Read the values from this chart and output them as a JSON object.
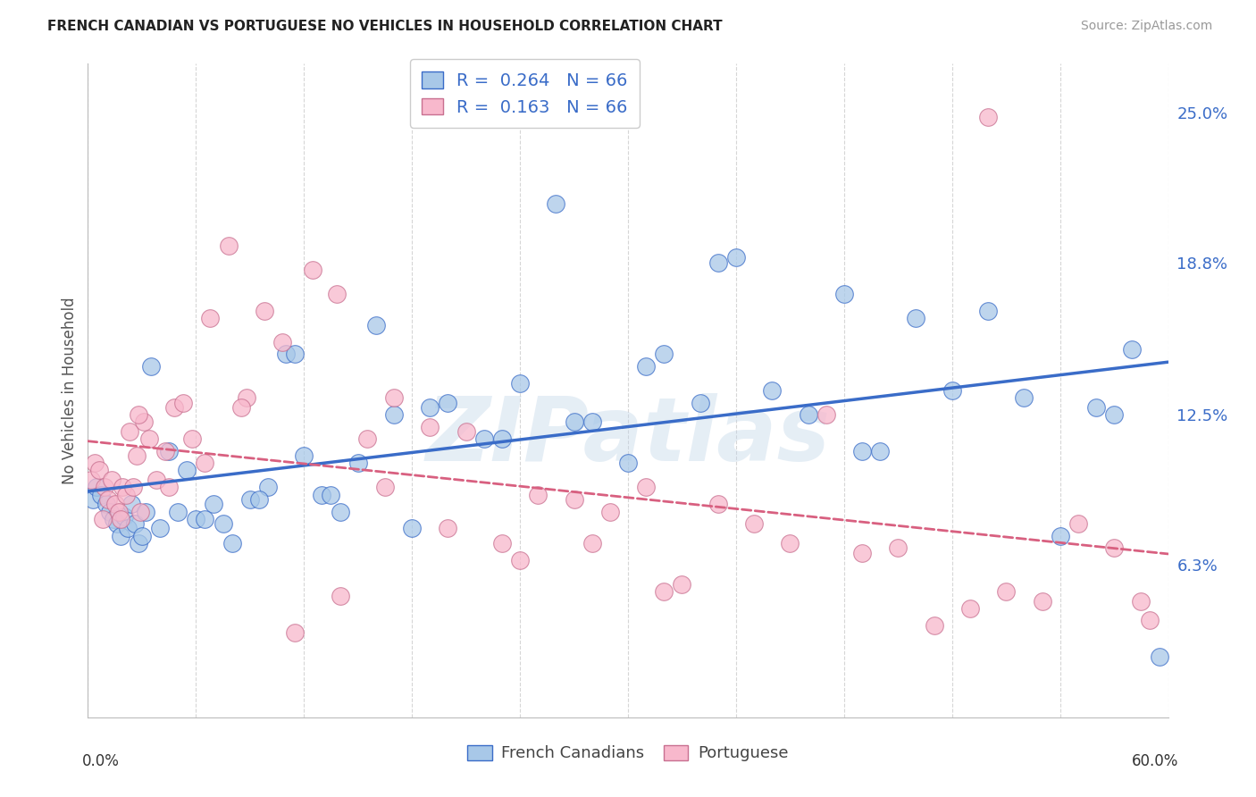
{
  "title": "FRENCH CANADIAN VS PORTUGUESE NO VEHICLES IN HOUSEHOLD CORRELATION CHART",
  "source": "Source: ZipAtlas.com",
  "ylabel": "No Vehicles in Household",
  "right_yticks": [
    6.3,
    12.5,
    18.8,
    25.0
  ],
  "xlim": [
    0.0,
    60.0
  ],
  "ylim": [
    0.0,
    27.0
  ],
  "r_blue": 0.264,
  "r_pink": 0.163,
  "n_blue": 66,
  "n_pink": 66,
  "blue_color": "#a8c8e8",
  "pink_color": "#f8b8cc",
  "trend_blue": "#3a6cc8",
  "trend_pink": "#d86080",
  "watermark": "ZIPatlas",
  "blue_x": [
    0.3,
    0.5,
    0.7,
    1.0,
    1.2,
    1.4,
    1.6,
    1.8,
    2.0,
    2.2,
    2.4,
    2.6,
    2.8,
    3.0,
    3.2,
    3.5,
    4.0,
    4.5,
    5.0,
    5.5,
    6.0,
    7.0,
    8.0,
    9.0,
    10.0,
    11.0,
    12.0,
    13.0,
    14.0,
    15.0,
    16.0,
    18.0,
    20.0,
    22.0,
    24.0,
    26.0,
    28.0,
    30.0,
    32.0,
    34.0,
    36.0,
    38.0,
    40.0,
    42.0,
    44.0,
    46.0,
    48.0,
    50.0,
    52.0,
    54.0,
    56.0,
    58.0,
    59.5,
    6.5,
    7.5,
    9.5,
    11.5,
    13.5,
    17.0,
    19.0,
    23.0,
    27.0,
    31.0,
    35.0,
    43.0,
    57.0
  ],
  "blue_y": [
    9.0,
    9.5,
    9.2,
    8.8,
    8.5,
    8.2,
    8.0,
    7.5,
    8.3,
    7.8,
    8.8,
    8.0,
    7.2,
    7.5,
    8.5,
    14.5,
    7.8,
    11.0,
    8.5,
    10.2,
    8.2,
    8.8,
    7.2,
    9.0,
    9.5,
    15.0,
    10.8,
    9.2,
    8.5,
    10.5,
    16.2,
    7.8,
    13.0,
    11.5,
    13.8,
    21.2,
    12.2,
    10.5,
    15.0,
    13.0,
    19.0,
    13.5,
    12.5,
    17.5,
    11.0,
    16.5,
    13.5,
    16.8,
    13.2,
    7.5,
    12.8,
    15.2,
    2.5,
    8.2,
    8.0,
    9.0,
    15.0,
    9.2,
    12.5,
    12.8,
    11.5,
    12.2,
    14.5,
    18.8,
    11.0,
    12.5
  ],
  "pink_x": [
    0.2,
    0.4,
    0.6,
    0.9,
    1.1,
    1.3,
    1.5,
    1.7,
    1.9,
    2.1,
    2.3,
    2.5,
    2.7,
    2.9,
    3.1,
    3.4,
    3.8,
    4.3,
    4.8,
    5.3,
    5.8,
    6.8,
    7.8,
    8.8,
    9.8,
    10.8,
    12.5,
    13.8,
    15.5,
    17.0,
    19.0,
    21.0,
    23.0,
    25.0,
    27.0,
    29.0,
    31.0,
    33.0,
    35.0,
    37.0,
    39.0,
    41.0,
    43.0,
    45.0,
    47.0,
    49.0,
    51.0,
    53.0,
    55.0,
    57.0,
    59.0,
    0.8,
    1.8,
    2.8,
    4.5,
    6.5,
    8.5,
    11.5,
    14.0,
    16.5,
    20.0,
    24.0,
    28.0,
    32.0,
    50.0,
    58.5
  ],
  "pink_y": [
    9.8,
    10.5,
    10.2,
    9.5,
    9.0,
    9.8,
    8.8,
    8.5,
    9.5,
    9.2,
    11.8,
    9.5,
    10.8,
    8.5,
    12.2,
    11.5,
    9.8,
    11.0,
    12.8,
    13.0,
    11.5,
    16.5,
    19.5,
    13.2,
    16.8,
    15.5,
    18.5,
    17.5,
    11.5,
    13.2,
    12.0,
    11.8,
    7.2,
    9.2,
    9.0,
    8.5,
    9.5,
    5.5,
    8.8,
    8.0,
    7.2,
    12.5,
    6.8,
    7.0,
    3.8,
    4.5,
    5.2,
    4.8,
    8.0,
    7.0,
    4.0,
    8.2,
    8.2,
    12.5,
    9.5,
    10.5,
    12.8,
    3.5,
    5.0,
    9.5,
    7.8,
    6.5,
    7.2,
    5.2,
    24.8,
    4.8
  ]
}
